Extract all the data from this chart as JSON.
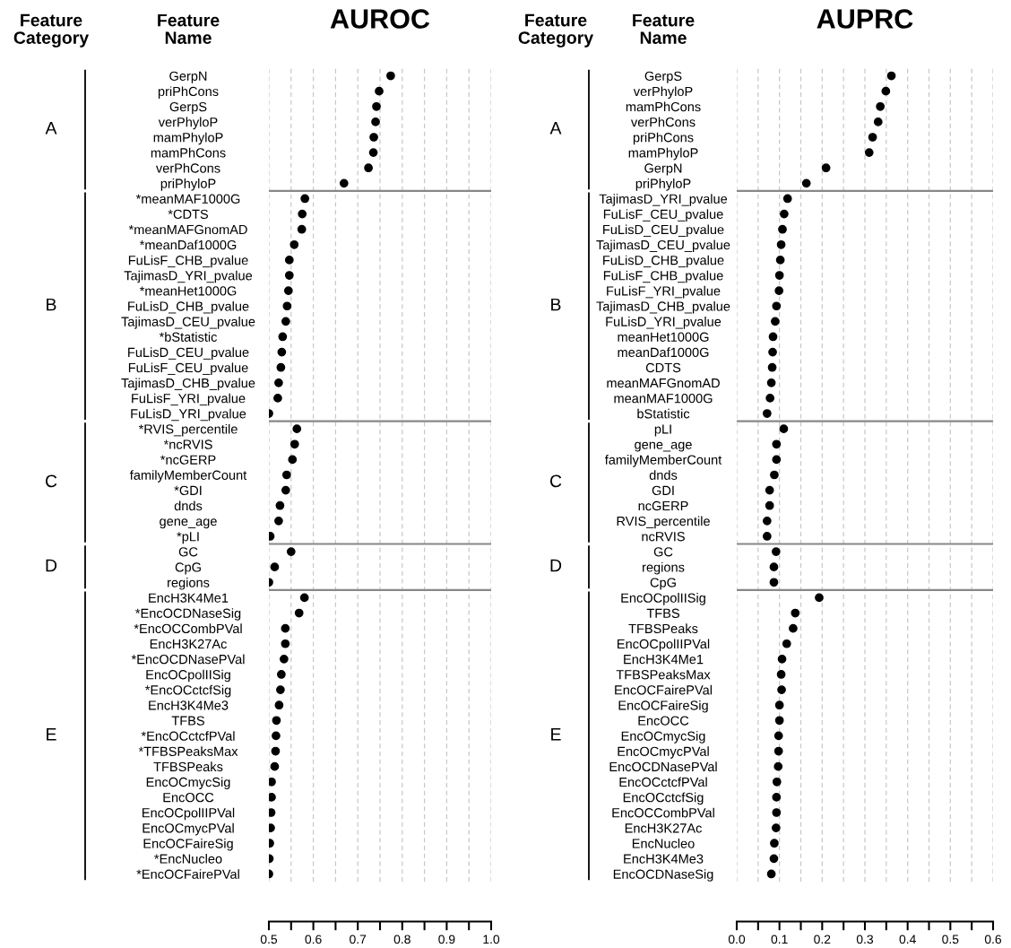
{
  "chart_data": [
    {
      "type": "scatter",
      "title": "AUROC",
      "ylabel": "Feature Name",
      "legend_title": "Feature Category",
      "annotations": [
        "A",
        "B",
        "C",
        "D",
        "E"
      ],
      "orientation": "horizontal",
      "marker": "circle",
      "grid": "x",
      "xlim": [
        0.5,
        1.0
      ],
      "xticks": [
        0.5,
        {
          "value": 0.55,
          "label": null
        },
        0.6,
        {
          "value": 0.65,
          "label": null
        },
        0.7,
        {
          "value": 0.75,
          "label": null
        },
        0.8,
        {
          "value": 0.85,
          "label": null
        },
        0.9,
        {
          "value": 0.95,
          "label": null
        },
        {
          "value": 1.0,
          "label": "1.0"
        }
      ],
      "categories": [
        "GerpN",
        "priPhCons",
        "GerpS",
        "verPhyloP",
        "mamPhyloP",
        "mamPhCons",
        "verPhCons",
        "priPhyloP",
        "*meanMAF1000G",
        "*CDTS",
        "*meanMAFGnomAD",
        "*meanDaf1000G",
        "FuLisF_CHB_pvalue",
        "TajimasD_YRI_pvalue",
        "*meanHet1000G",
        "FuLisD_CHB_pvalue",
        "TajimasD_CEU_pvalue",
        "*bStatistic",
        "FuLisD_CEU_pvalue",
        "FuLisF_CEU_pvalue",
        "TajimasD_CHB_pvalue",
        "FuLisF_YRI_pvalue",
        "FuLisD_YRI_pvalue",
        "*RVIS_percentile",
        "*ncRVIS",
        "*ncGERP",
        "familyMemberCount",
        "*GDI",
        "dnds",
        "gene_age",
        "*pLI",
        "GC",
        "CpG",
        "regions",
        "EncH3K4Me1",
        "*EncOCDNaseSig",
        "*EncOCCombPVal",
        "EncH3K27Ac",
        "*EncOCDNasePVal",
        "EncOCpolIISig",
        "*EncOCctcfSig",
        "EncH3K4Me3",
        "TFBS",
        "*EncOCctcfPVal",
        "*TFBSPeaksMax",
        "TFBSPeaks",
        "EncOCmycSig",
        "EncOCC",
        "EncOCpolIIPVal",
        "EncOCmycPVal",
        "EncOCFaireSig",
        "*EncNucleo",
        "*EncOCFairePVal"
      ],
      "series": [
        {
          "color": "#000000",
          "values": [
            0.774,
            0.748,
            0.742,
            0.74,
            0.736,
            0.735,
            0.724,
            0.669,
            null,
            null,
            null,
            null,
            null,
            null,
            null,
            null,
            null,
            null,
            null,
            null,
            null,
            null,
            null,
            null,
            null,
            null,
            null,
            null,
            null,
            null,
            null,
            null,
            null,
            null,
            null,
            null,
            null,
            null,
            null,
            null,
            null,
            null,
            null,
            null,
            null,
            null,
            null,
            null,
            null,
            null,
            null,
            null,
            null
          ]
        },
        {
          "color": "#000000",
          "values": [
            null,
            null,
            null,
            null,
            null,
            null,
            null,
            null,
            0.581,
            0.575,
            0.574,
            0.557,
            0.546,
            0.546,
            0.544,
            0.541,
            0.538,
            0.531,
            0.529,
            0.527,
            0.522,
            0.52,
            0.5,
            null,
            null,
            null,
            null,
            null,
            null,
            null,
            null,
            null,
            null,
            null,
            null,
            null,
            null,
            null,
            null,
            null,
            null,
            null,
            null,
            null,
            null,
            null,
            null,
            null,
            null,
            null,
            null,
            null,
            null
          ]
        },
        {
          "color": "#000000",
          "values": [
            null,
            null,
            null,
            null,
            null,
            null,
            null,
            null,
            null,
            null,
            null,
            null,
            null,
            null,
            null,
            null,
            null,
            null,
            null,
            null,
            null,
            null,
            null,
            0.563,
            0.558,
            0.553,
            0.54,
            0.538,
            0.525,
            0.522,
            0.503,
            null,
            null,
            null,
            null,
            null,
            null,
            null,
            null,
            null,
            null,
            null,
            null,
            null,
            null,
            null,
            null,
            null,
            null,
            null,
            null,
            null,
            null
          ]
        },
        {
          "color": "#000000",
          "values": [
            null,
            null,
            null,
            null,
            null,
            null,
            null,
            null,
            null,
            null,
            null,
            null,
            null,
            null,
            null,
            null,
            null,
            null,
            null,
            null,
            null,
            null,
            null,
            null,
            null,
            null,
            null,
            null,
            null,
            null,
            null,
            0.55,
            0.513,
            0.5,
            null,
            null,
            null,
            null,
            null,
            null,
            null,
            null,
            null,
            null,
            null,
            null,
            null,
            null,
            null,
            null,
            null,
            null,
            null
          ]
        },
        {
          "color": "#000000",
          "values": [
            null,
            null,
            null,
            null,
            null,
            null,
            null,
            null,
            null,
            null,
            null,
            null,
            null,
            null,
            null,
            null,
            null,
            null,
            null,
            null,
            null,
            null,
            null,
            null,
            null,
            null,
            null,
            null,
            null,
            null,
            null,
            null,
            null,
            null,
            0.58,
            0.568,
            0.537,
            0.537,
            0.534,
            0.528,
            0.526,
            0.523,
            0.517,
            0.516,
            0.515,
            0.513,
            0.506,
            0.506,
            0.505,
            0.504,
            0.502,
            0.501,
            0.5
          ]
        }
      ]
    },
    {
      "type": "scatter",
      "title": "AUPRC",
      "ylabel": "Feature Name",
      "legend_title": "Feature Category",
      "annotations": [
        "A",
        "B",
        "C",
        "D",
        "E"
      ],
      "orientation": "horizontal",
      "marker": "circle",
      "grid": "x",
      "xlim": [
        0.0,
        0.6
      ],
      "xticks": [
        {
          "value": 0.0,
          "label": "0.0"
        },
        {
          "value": 0.05,
          "label": null
        },
        0.1,
        {
          "value": 0.15,
          "label": null
        },
        0.2,
        {
          "value": 0.25,
          "label": null
        },
        0.3,
        {
          "value": 0.35,
          "label": null
        },
        0.4,
        {
          "value": 0.45,
          "label": null
        },
        0.5,
        {
          "value": 0.55,
          "label": null
        },
        0.6
      ],
      "categories": [
        "GerpS",
        "verPhyloP",
        "mamPhCons",
        "verPhCons",
        "priPhCons",
        "mamPhyloP",
        "GerpN",
        "priPhyloP",
        "TajimasD_YRI_pvalue",
        "FuLisF_CEU_pvalue",
        "FuLisD_CEU_pvalue",
        "TajimasD_CEU_pvalue",
        "FuLisD_CHB_pvalue",
        "FuLisF_CHB_pvalue",
        "FuLisF_YRI_pvalue",
        "TajimasD_CHB_pvalue",
        "FuLisD_YRI_pvalue",
        "meanHet1000G",
        "meanDaf1000G",
        "CDTS",
        "meanMAFGnomAD",
        "meanMAF1000G",
        "bStatistic",
        "pLI",
        "gene_age",
        "familyMemberCount",
        "dnds",
        "GDI",
        "ncGERP",
        "RVIS_percentile",
        "ncRVIS",
        "GC",
        "regions",
        "CpG",
        "EncOCpolIISig",
        "TFBS",
        "TFBSPeaks",
        "EncOCpolIIPVal",
        "EncH3K4Me1",
        "TFBSPeaksMax",
        "EncOCFairePVal",
        "EncOCFaireSig",
        "EncOCC",
        "EncOCmycSig",
        "EncOCmycPVal",
        "EncOCDNasePVal",
        "EncOCctcfPVal",
        "EncOCctcfSig",
        "EncOCCombPVal",
        "EncH3K27Ac",
        "EncNucleo",
        "EncH3K4Me3",
        "EncOCDNaseSig"
      ],
      "series": [
        {
          "color": "#000000",
          "values": [
            0.362,
            0.349,
            0.336,
            0.331,
            0.318,
            0.31,
            0.209,
            0.163,
            null,
            null,
            null,
            null,
            null,
            null,
            null,
            null,
            null,
            null,
            null,
            null,
            null,
            null,
            null,
            null,
            null,
            null,
            null,
            null,
            null,
            null,
            null,
            null,
            null,
            null,
            null,
            null,
            null,
            null,
            null,
            null,
            null,
            null,
            null,
            null,
            null,
            null,
            null,
            null,
            null,
            null,
            null,
            null,
            null
          ]
        },
        {
          "color": "#000000",
          "values": [
            null,
            null,
            null,
            null,
            null,
            null,
            null,
            null,
            0.119,
            0.111,
            0.107,
            0.104,
            0.102,
            0.1,
            0.099,
            0.093,
            0.09,
            0.085,
            0.084,
            0.083,
            0.081,
            0.078,
            0.071,
            null,
            null,
            null,
            null,
            null,
            null,
            null,
            null,
            null,
            null,
            null,
            null,
            null,
            null,
            null,
            null,
            null,
            null,
            null,
            null,
            null,
            null,
            null,
            null,
            null,
            null,
            null,
            null,
            null,
            null
          ]
        },
        {
          "color": "#000000",
          "values": [
            null,
            null,
            null,
            null,
            null,
            null,
            null,
            null,
            null,
            null,
            null,
            null,
            null,
            null,
            null,
            null,
            null,
            null,
            null,
            null,
            null,
            null,
            null,
            0.11,
            0.093,
            0.093,
            0.088,
            0.077,
            0.077,
            0.071,
            0.071,
            null,
            null,
            null,
            null,
            null,
            null,
            null,
            null,
            null,
            null,
            null,
            null,
            null,
            null,
            null,
            null,
            null,
            null,
            null,
            null,
            null,
            null
          ]
        },
        {
          "color": "#000000",
          "values": [
            null,
            null,
            null,
            null,
            null,
            null,
            null,
            null,
            null,
            null,
            null,
            null,
            null,
            null,
            null,
            null,
            null,
            null,
            null,
            null,
            null,
            null,
            null,
            null,
            null,
            null,
            null,
            null,
            null,
            null,
            null,
            0.092,
            0.087,
            0.087,
            null,
            null,
            null,
            null,
            null,
            null,
            null,
            null,
            null,
            null,
            null,
            null,
            null,
            null,
            null,
            null,
            null,
            null,
            null
          ]
        },
        {
          "color": "#000000",
          "values": [
            null,
            null,
            null,
            null,
            null,
            null,
            null,
            null,
            null,
            null,
            null,
            null,
            null,
            null,
            null,
            null,
            null,
            null,
            null,
            null,
            null,
            null,
            null,
            null,
            null,
            null,
            null,
            null,
            null,
            null,
            null,
            null,
            null,
            null,
            0.193,
            0.137,
            0.132,
            0.117,
            0.106,
            0.104,
            0.105,
            0.1,
            0.1,
            0.098,
            0.098,
            0.097,
            0.094,
            0.093,
            0.093,
            0.092,
            0.088,
            0.087,
            0.081
          ]
        }
      ]
    }
  ]
}
